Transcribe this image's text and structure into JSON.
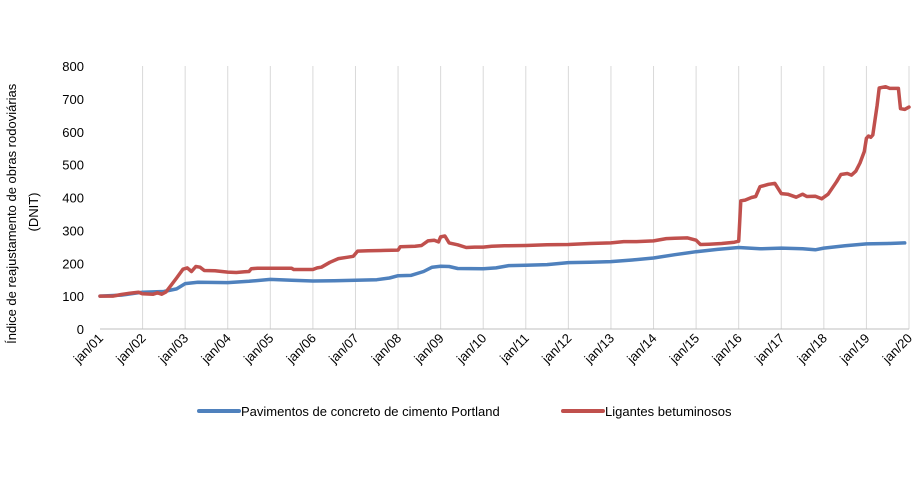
{
  "chart_data": {
    "type": "line",
    "ylabel": [
      "Índice de reajustamento de obras rodoviárias",
      "(DNIT)"
    ],
    "ylim": [
      0,
      800
    ],
    "yticks": [
      0,
      100,
      200,
      300,
      400,
      500,
      600,
      700,
      800
    ],
    "xlim": [
      2001.0,
      2020.0
    ],
    "xticks": [
      {
        "value": 2001,
        "label": "jan/01"
      },
      {
        "value": 2002,
        "label": "jan/02"
      },
      {
        "value": 2003,
        "label": "jan/03"
      },
      {
        "value": 2004,
        "label": "jan/04"
      },
      {
        "value": 2005,
        "label": "jan/05"
      },
      {
        "value": 2006,
        "label": "jan/06"
      },
      {
        "value": 2007,
        "label": "jan/07"
      },
      {
        "value": 2008,
        "label": "jan/08"
      },
      {
        "value": 2009,
        "label": "jan/09"
      },
      {
        "value": 2010,
        "label": "jan/10"
      },
      {
        "value": 2011,
        "label": "jan/11"
      },
      {
        "value": 2012,
        "label": "jan/12"
      },
      {
        "value": 2013,
        "label": "jan/13"
      },
      {
        "value": 2014,
        "label": "jan/14"
      },
      {
        "value": 2015,
        "label": "jan/15"
      },
      {
        "value": 2016,
        "label": "jan/16"
      },
      {
        "value": 2017,
        "label": "jan/17"
      },
      {
        "value": 2018,
        "label": "jan/18"
      },
      {
        "value": 2019,
        "label": "jan/19"
      },
      {
        "value": 2020,
        "label": "jan/20"
      }
    ],
    "grid": {
      "vertical": true,
      "horizontal": false
    },
    "legend_position": "bottom",
    "series": [
      {
        "name": "Pavimentos de concreto de cimento Portland",
        "color": "#4f81bd",
        "points": [
          [
            2001.0,
            100
          ],
          [
            2001.5,
            103
          ],
          [
            2002.0,
            112
          ],
          [
            2002.5,
            114
          ],
          [
            2002.8,
            122
          ],
          [
            2003.0,
            138
          ],
          [
            2003.3,
            142
          ],
          [
            2004.0,
            141
          ],
          [
            2004.5,
            145
          ],
          [
            2005.0,
            151
          ],
          [
            2005.5,
            148
          ],
          [
            2006.0,
            146
          ],
          [
            2006.5,
            147
          ],
          [
            2007.0,
            148
          ],
          [
            2007.5,
            150
          ],
          [
            2007.8,
            155
          ],
          [
            2008.0,
            162
          ],
          [
            2008.3,
            163
          ],
          [
            2008.6,
            175
          ],
          [
            2008.8,
            188
          ],
          [
            2009.0,
            191
          ],
          [
            2009.2,
            190
          ],
          [
            2009.4,
            184
          ],
          [
            2010.0,
            183
          ],
          [
            2010.3,
            186
          ],
          [
            2010.6,
            193
          ],
          [
            2011.0,
            194
          ],
          [
            2011.5,
            196
          ],
          [
            2012.0,
            202
          ],
          [
            2012.5,
            203
          ],
          [
            2013.0,
            205
          ],
          [
            2013.5,
            210
          ],
          [
            2014.0,
            216
          ],
          [
            2014.5,
            226
          ],
          [
            2015.0,
            235
          ],
          [
            2015.5,
            242
          ],
          [
            2016.0,
            248
          ],
          [
            2016.5,
            244
          ],
          [
            2017.0,
            246
          ],
          [
            2017.5,
            244
          ],
          [
            2017.8,
            241
          ],
          [
            2018.0,
            246
          ],
          [
            2018.5,
            253
          ],
          [
            2019.0,
            259
          ],
          [
            2019.5,
            260
          ],
          [
            2019.9,
            262
          ]
        ]
      },
      {
        "name": "Ligantes betuminosos",
        "color": "#c0504d",
        "points": [
          [
            2001.0,
            100
          ],
          [
            2001.3,
            100
          ],
          [
            2001.5,
            105
          ],
          [
            2001.7,
            109
          ],
          [
            2001.9,
            112
          ],
          [
            2002.0,
            107
          ],
          [
            2002.25,
            106
          ],
          [
            2002.35,
            110
          ],
          [
            2002.45,
            106
          ],
          [
            2002.55,
            113
          ],
          [
            2002.65,
            130
          ],
          [
            2002.8,
            155
          ],
          [
            2002.95,
            182
          ],
          [
            2003.05,
            186
          ],
          [
            2003.15,
            175
          ],
          [
            2003.25,
            190
          ],
          [
            2003.35,
            188
          ],
          [
            2003.45,
            178
          ],
          [
            2003.7,
            177
          ],
          [
            2004.0,
            173
          ],
          [
            2004.2,
            172
          ],
          [
            2004.4,
            174
          ],
          [
            2004.5,
            175
          ],
          [
            2004.55,
            183
          ],
          [
            2004.7,
            185
          ],
          [
            2005.5,
            185
          ],
          [
            2005.55,
            181
          ],
          [
            2006.0,
            181
          ],
          [
            2006.1,
            186
          ],
          [
            2006.2,
            188
          ],
          [
            2006.4,
            203
          ],
          [
            2006.6,
            214
          ],
          [
            2006.8,
            218
          ],
          [
            2006.95,
            221
          ],
          [
            2007.05,
            237
          ],
          [
            2007.3,
            238
          ],
          [
            2007.7,
            239
          ],
          [
            2008.0,
            240
          ],
          [
            2008.05,
            250
          ],
          [
            2008.4,
            252
          ],
          [
            2008.55,
            254
          ],
          [
            2008.7,
            268
          ],
          [
            2008.85,
            270
          ],
          [
            2008.95,
            265
          ],
          [
            2009.0,
            280
          ],
          [
            2009.1,
            283
          ],
          [
            2009.2,
            262
          ],
          [
            2009.4,
            256
          ],
          [
            2009.6,
            248
          ],
          [
            2009.8,
            249
          ],
          [
            2010.0,
            249
          ],
          [
            2010.2,
            252
          ],
          [
            2010.5,
            253
          ],
          [
            2011.0,
            254
          ],
          [
            2011.5,
            256
          ],
          [
            2012.0,
            257
          ],
          [
            2012.5,
            260
          ],
          [
            2013.0,
            262
          ],
          [
            2013.3,
            266
          ],
          [
            2013.6,
            266
          ],
          [
            2014.0,
            268
          ],
          [
            2014.3,
            275
          ],
          [
            2014.5,
            276
          ],
          [
            2014.8,
            277
          ],
          [
            2015.0,
            270
          ],
          [
            2015.1,
            257
          ],
          [
            2015.3,
            258
          ],
          [
            2015.6,
            260
          ],
          [
            2015.9,
            264
          ],
          [
            2016.0,
            267
          ],
          [
            2016.05,
            390
          ],
          [
            2016.15,
            392
          ],
          [
            2016.3,
            400
          ],
          [
            2016.4,
            403
          ],
          [
            2016.5,
            433
          ],
          [
            2016.7,
            440
          ],
          [
            2016.85,
            443
          ],
          [
            2017.0,
            412
          ],
          [
            2017.15,
            410
          ],
          [
            2017.35,
            401
          ],
          [
            2017.5,
            410
          ],
          [
            2017.6,
            403
          ],
          [
            2017.8,
            404
          ],
          [
            2017.95,
            396
          ],
          [
            2018.1,
            410
          ],
          [
            2018.3,
            448
          ],
          [
            2018.4,
            470
          ],
          [
            2018.55,
            473
          ],
          [
            2018.65,
            468
          ],
          [
            2018.75,
            480
          ],
          [
            2018.85,
            505
          ],
          [
            2018.95,
            540
          ],
          [
            2019.0,
            580
          ],
          [
            2019.05,
            587
          ],
          [
            2019.1,
            583
          ],
          [
            2019.15,
            590
          ],
          [
            2019.25,
            680
          ],
          [
            2019.3,
            733
          ],
          [
            2019.45,
            737
          ],
          [
            2019.55,
            732
          ],
          [
            2019.75,
            732
          ],
          [
            2019.8,
            670
          ],
          [
            2019.9,
            668
          ],
          [
            2020.0,
            675
          ]
        ]
      }
    ]
  }
}
